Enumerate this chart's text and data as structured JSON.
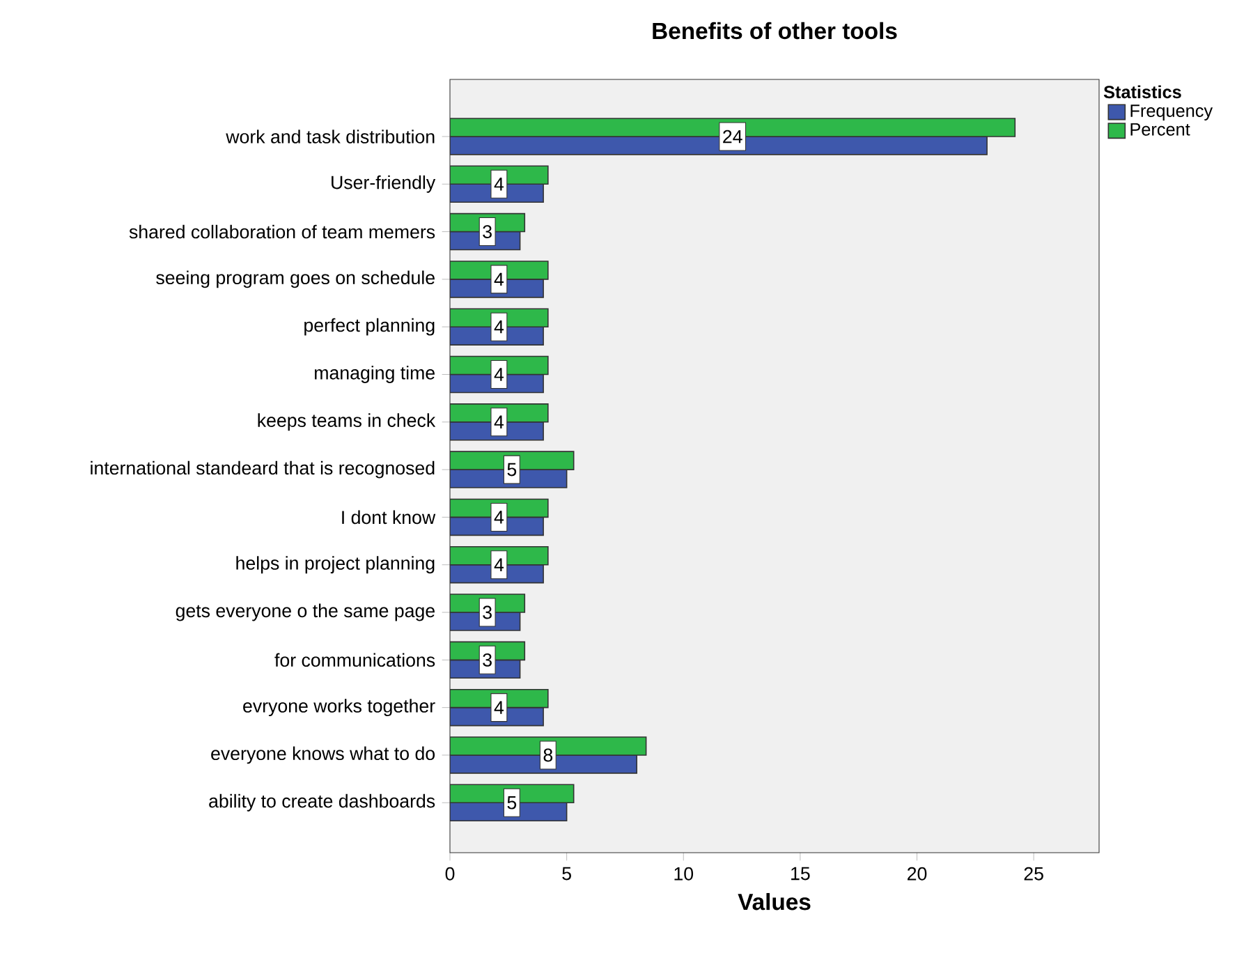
{
  "chart_data": {
    "type": "bar",
    "orientation": "horizontal",
    "title": "Benefits of other tools",
    "xlabel": "Values",
    "legend_title": "Statistics",
    "legend": "top right",
    "categories": [
      "work and task distribution",
      "User-friendly",
      "shared collaboration of team memers",
      "seeing program goes on schedule",
      "perfect planning",
      "managing time",
      "keeps teams in check",
      "international standeard that is recognosed",
      "I dont know",
      "helps in project planning",
      "gets everyone o the same page",
      "for communications",
      "evryone works together",
      "everyone knows what to do",
      "ability to create dashboards"
    ],
    "series": [
      {
        "name": "Frequency",
        "color": "#3e58ac",
        "values": [
          23,
          4,
          3,
          4,
          4,
          4,
          4,
          5,
          4,
          4,
          3,
          3,
          4,
          8,
          5
        ]
      },
      {
        "name": "Percent",
        "color": "#2eb84a",
        "values": [
          24.2,
          4.2,
          3.2,
          4.2,
          4.2,
          4.2,
          4.2,
          5.3,
          4.2,
          4.2,
          3.2,
          3.2,
          4.2,
          8.4,
          5.3
        ],
        "value_labels": [
          "24",
          "4",
          "3",
          "4",
          "4",
          "4",
          "4",
          "5",
          "4",
          "4",
          "3",
          "3",
          "4",
          "8",
          "5"
        ]
      }
    ],
    "xlim": [
      0,
      27.8
    ],
    "xticks": [
      0,
      5,
      10,
      15,
      20,
      25
    ],
    "grid": false
  }
}
